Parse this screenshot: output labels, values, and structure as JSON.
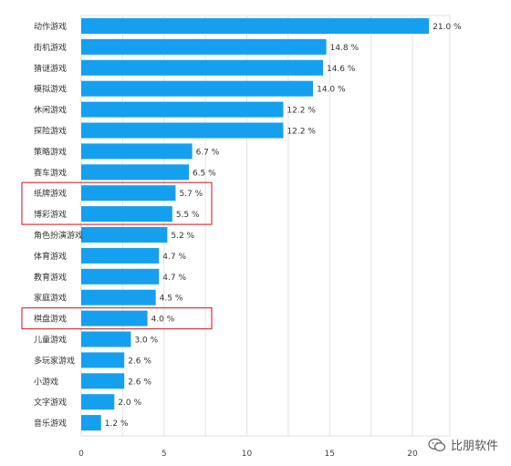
{
  "chart_data": {
    "type": "bar",
    "orientation": "horizontal",
    "categories": [
      "动作游戏",
      "街机游戏",
      "猜谜游戏",
      "模拟游戏",
      "休闲游戏",
      "探险游戏",
      "策略游戏",
      "赛车游戏",
      "纸牌游戏",
      "博彩游戏",
      "角色扮演游戏",
      "体育游戏",
      "教育游戏",
      "家庭游戏",
      "棋盘游戏",
      "儿童游戏",
      "多玩家游戏",
      "小游戏",
      "文字游戏",
      "音乐游戏"
    ],
    "values": [
      21.0,
      14.8,
      14.6,
      14.0,
      12.2,
      12.2,
      6.7,
      6.5,
      5.7,
      5.5,
      5.2,
      4.7,
      4.7,
      4.5,
      4.0,
      3.0,
      2.6,
      2.6,
      2.0,
      1.2
    ],
    "value_labels": [
      "21.0 %",
      "14.8 %",
      "14.6 %",
      "14.0 %",
      "12.2 %",
      "12.2 %",
      "6.7 %",
      "6.5 %",
      "5.7 %",
      "5.5 %",
      "5.2 %",
      "4.7 %",
      "4.7 %",
      "4.5 %",
      "4.0 %",
      "3.0 %",
      "2.6 %",
      "2.6 %",
      "2.0 %",
      "1.2 %"
    ],
    "xticks": [
      0,
      5,
      10,
      15,
      20
    ],
    "xlim": [
      0,
      22
    ],
    "grid": "vertical",
    "highlighted": [
      [
        "纸牌游戏",
        "博彩游戏"
      ],
      [
        "棋盘游戏"
      ]
    ],
    "bar_color": "#14a0ef",
    "highlight_color": "#d9363e",
    "title": "",
    "xlabel": "",
    "ylabel": ""
  },
  "watermark": {
    "text": "比朋软件",
    "icon": "wechat-icon"
  }
}
